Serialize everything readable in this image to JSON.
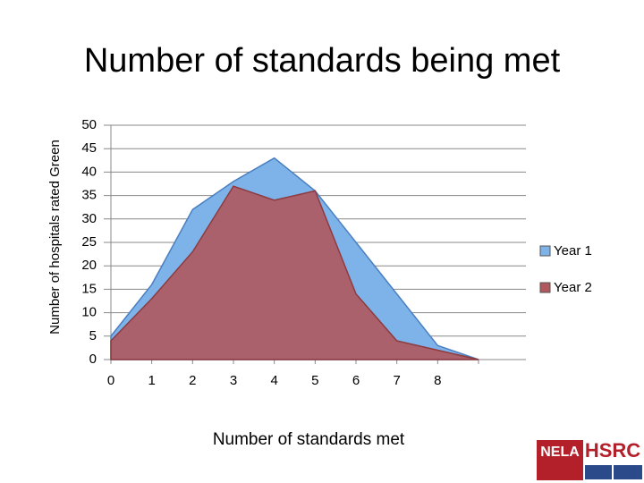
{
  "chart_data": {
    "type": "area",
    "title": "Number of standards being met",
    "x_label": "Number of standards met",
    "y_label": "Number of hospitals rated Green",
    "categories": [
      "0",
      "1",
      "2",
      "3",
      "4",
      "5",
      "6",
      "7",
      "8",
      null
    ],
    "series": [
      {
        "name": "Year 1",
        "color": "#7eb3ea",
        "values": [
          5,
          16,
          32,
          38,
          43,
          36,
          25,
          14,
          3,
          0
        ]
      },
      {
        "name": "Year 2",
        "color": "#b0585d",
        "values": [
          4,
          13,
          23,
          37,
          34,
          36,
          14,
          4,
          2,
          0
        ]
      }
    ],
    "ylim": [
      0,
      50
    ],
    "yticks": [
      0,
      5,
      10,
      15,
      20,
      25,
      30,
      35,
      40,
      45,
      50
    ],
    "grid": true,
    "legend": "right"
  },
  "logos": {
    "left": "NELA",
    "right": "HSRC"
  }
}
